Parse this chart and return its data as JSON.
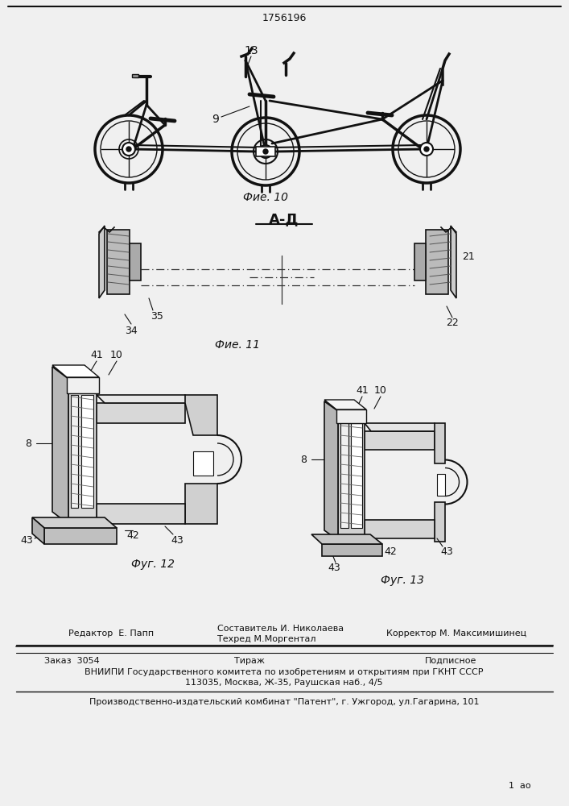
{
  "patent_number": "1756196",
  "bg_color": "#f0f0f0",
  "paper_color": "#f5f5f0",
  "fig10_caption": "Фие. 10",
  "fig11_caption": "Фие. 11",
  "fig12_caption": "Фуг. 12",
  "fig13_caption": "Фуг. 13",
  "section_label": "А-Д",
  "editor_line": "Редактор  Е. Папп",
  "compiler_line1": "Составитель И. Николаева",
  "tech_line": "Техред М.Моргентал",
  "corrector_line": "Корректор М. Максимишинец",
  "order_line": "Заказ  3054",
  "tirazh_line": "Тираж",
  "podpisnoe_line": "Подписное",
  "vniipii_line": "ВНИИПИ Государственного комитета по изобретениям и открытиям при ГКНТ СССР",
  "address_line": "113035, Москва, Ж-35, Раушская наб., 4/5",
  "publisher_line": "Производственно-издательский комбинат \"Патент\", г. Ужгород, ул.Гагарина, 101",
  "page_num": "1  ао"
}
